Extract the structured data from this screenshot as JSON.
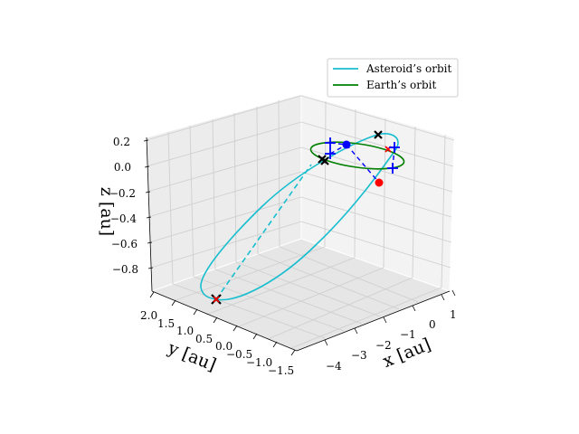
{
  "chart_data": {
    "type": "line3d",
    "title": "",
    "axes": {
      "x": {
        "label": "x [au]",
        "ticks": [
          "−4",
          "−3",
          "−2",
          "−1",
          "0",
          "1"
        ]
      },
      "y": {
        "label": "y [au]",
        "ticks": [
          "2.0",
          "1.5",
          "1.0",
          "0.5",
          "0.0",
          "−0.5",
          "−1.0",
          "−1.5"
        ]
      },
      "z": {
        "label": "z [au]",
        "ticks": [
          "0.2",
          "0.0",
          "−0.2",
          "−0.4",
          "−0.6",
          "−0.8"
        ]
      }
    },
    "legend": {
      "position": "top-right",
      "entries": [
        {
          "label": "Asteroid’s orbit",
          "color": "#17becf"
        },
        {
          "label": "Earth’s orbit",
          "color": "#008000"
        }
      ]
    },
    "series": [
      {
        "name": "Asteroid’s orbit",
        "color": "#17becf",
        "style": "solid / dashed below ecliptic",
        "description": "inclined ellipse from x≈1 to x≈-4"
      },
      {
        "name": "Earth’s orbit",
        "color": "#008000",
        "style": "solid",
        "description": "circle of radius 1 au in z=0 plane"
      }
    ],
    "markers": {
      "black_x": 4,
      "red_x": 2,
      "blue_plus": 4,
      "blue_dot": 1,
      "red_dot": 1
    },
    "grid": true,
    "colors": {
      "asteroid": "#17becf",
      "earth": "#008000",
      "pane": "#f2f2f2",
      "grid": "#d0d0d0"
    }
  }
}
